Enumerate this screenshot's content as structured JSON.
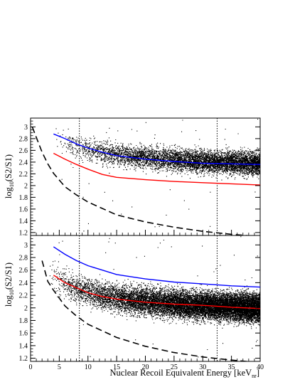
{
  "chart_data": [
    {
      "type": "scatter",
      "panel": "top",
      "xlabel": "",
      "ylabel": "log10(S2/S1)",
      "ylabel_parts": {
        "prefix": "log",
        "sub": "10",
        "suffix": "(S2/S1)"
      },
      "xlim": [
        0,
        40
      ],
      "ylim": [
        1.15,
        3.15
      ],
      "y_ticks": [
        1.2,
        1.4,
        1.6,
        1.8,
        2,
        2.2,
        2.4,
        2.6,
        2.8,
        3
      ],
      "y_tick_labels": [
        "1.2",
        "1.4",
        "1.6",
        "1.8",
        "2",
        "2.2",
        "2.4",
        "2.6",
        "2.8",
        "3"
      ],
      "vlines": [
        8.5,
        32.5
      ],
      "scatter_cloud": {
        "x_range": [
          4,
          40
        ],
        "center": {
          "x": [
            4,
            6,
            8,
            10,
            15,
            20,
            25,
            30,
            35,
            40
          ],
          "y": [
            2.8,
            2.72,
            2.65,
            2.6,
            2.52,
            2.47,
            2.44,
            2.41,
            2.39,
            2.38
          ]
        },
        "spread": 0.13,
        "density": "rising with energy"
      },
      "series": [
        {
          "name": "",
          "color": "#0000ff",
          "x": [
            4,
            6,
            8,
            10,
            12.5,
            15,
            20,
            25,
            30,
            35,
            40
          ],
          "y": [
            2.88,
            2.8,
            2.71,
            2.64,
            2.57,
            2.51,
            2.45,
            2.41,
            2.38,
            2.37,
            2.36
          ]
        },
        {
          "name": "",
          "color": "#ff0000",
          "x": [
            4,
            6,
            8,
            10,
            12.5,
            15,
            20,
            25,
            30,
            35,
            40
          ],
          "y": [
            2.55,
            2.45,
            2.36,
            2.28,
            2.19,
            2.14,
            2.1,
            2.07,
            2.05,
            2.03,
            2.01
          ]
        },
        {
          "name": "",
          "color": "#000000",
          "dash": true,
          "x": [
            0.3,
            1,
            2,
            3,
            4,
            6,
            8,
            10,
            15,
            20,
            25,
            30,
            35,
            40
          ],
          "y": [
            3.0,
            2.82,
            2.57,
            2.37,
            2.21,
            1.98,
            1.84,
            1.72,
            1.5,
            1.38,
            1.29,
            1.22,
            1.17,
            1.13
          ]
        }
      ]
    },
    {
      "type": "scatter",
      "panel": "bottom",
      "xlabel": "Nuclear Recoil Equivalent Energy [keV",
      "xlabel_sub": "nr",
      "xlabel_end": "]",
      "ylabel": "log10(S2/S1)",
      "ylabel_parts": {
        "prefix": "log",
        "sub": "10",
        "suffix": "(S2/S1)"
      },
      "xlim": [
        0,
        40
      ],
      "ylim": [
        1.15,
        3.15
      ],
      "x_ticks": [
        0,
        5,
        10,
        15,
        20,
        25,
        30,
        35,
        40
      ],
      "x_tick_labels": [
        "0",
        "5",
        "10",
        "15",
        "20",
        "25",
        "30",
        "35",
        "40"
      ],
      "y_ticks": [
        1.2,
        1.4,
        1.6,
        1.8,
        2,
        2.2,
        2.4,
        2.6,
        2.8,
        3
      ],
      "y_tick_labels": [
        "1.2",
        "1.4",
        "1.6",
        "1.8",
        "2",
        "2.2",
        "2.4",
        "2.6",
        "2.8",
        "3"
      ],
      "vlines": [
        8.5,
        32.5
      ],
      "scatter_cloud": {
        "x_range": [
          3,
          40
        ],
        "center": {
          "x": [
            3,
            5,
            7,
            9,
            12,
            15,
            20,
            25,
            30,
            35,
            40
          ],
          "y": [
            2.6,
            2.44,
            2.33,
            2.27,
            2.2,
            2.15,
            2.1,
            2.06,
            2.04,
            2.02,
            2.0
          ]
        },
        "spread": 0.15,
        "density": "high"
      },
      "series": [
        {
          "name": "",
          "color": "#0000ff",
          "x": [
            4,
            6,
            8,
            10,
            12.5,
            15,
            20,
            25,
            30,
            35,
            40
          ],
          "y": [
            2.97,
            2.85,
            2.75,
            2.67,
            2.6,
            2.53,
            2.46,
            2.41,
            2.38,
            2.35,
            2.33
          ]
        },
        {
          "name": "",
          "color": "#ff0000",
          "x": [
            4,
            6,
            8,
            10,
            12.5,
            15,
            20,
            25,
            30,
            35,
            40
          ],
          "y": [
            2.52,
            2.4,
            2.32,
            2.24,
            2.18,
            2.14,
            2.09,
            2.06,
            2.04,
            2.01,
            1.99
          ]
        },
        {
          "name": "",
          "color": "#000000",
          "dash": true,
          "x": [
            2,
            3,
            4,
            6,
            8,
            10,
            15,
            20,
            25,
            30,
            35,
            40
          ],
          "y": [
            2.75,
            2.42,
            2.28,
            2.03,
            1.87,
            1.74,
            1.53,
            1.39,
            1.29,
            1.22,
            1.17,
            1.13
          ]
        }
      ]
    }
  ]
}
